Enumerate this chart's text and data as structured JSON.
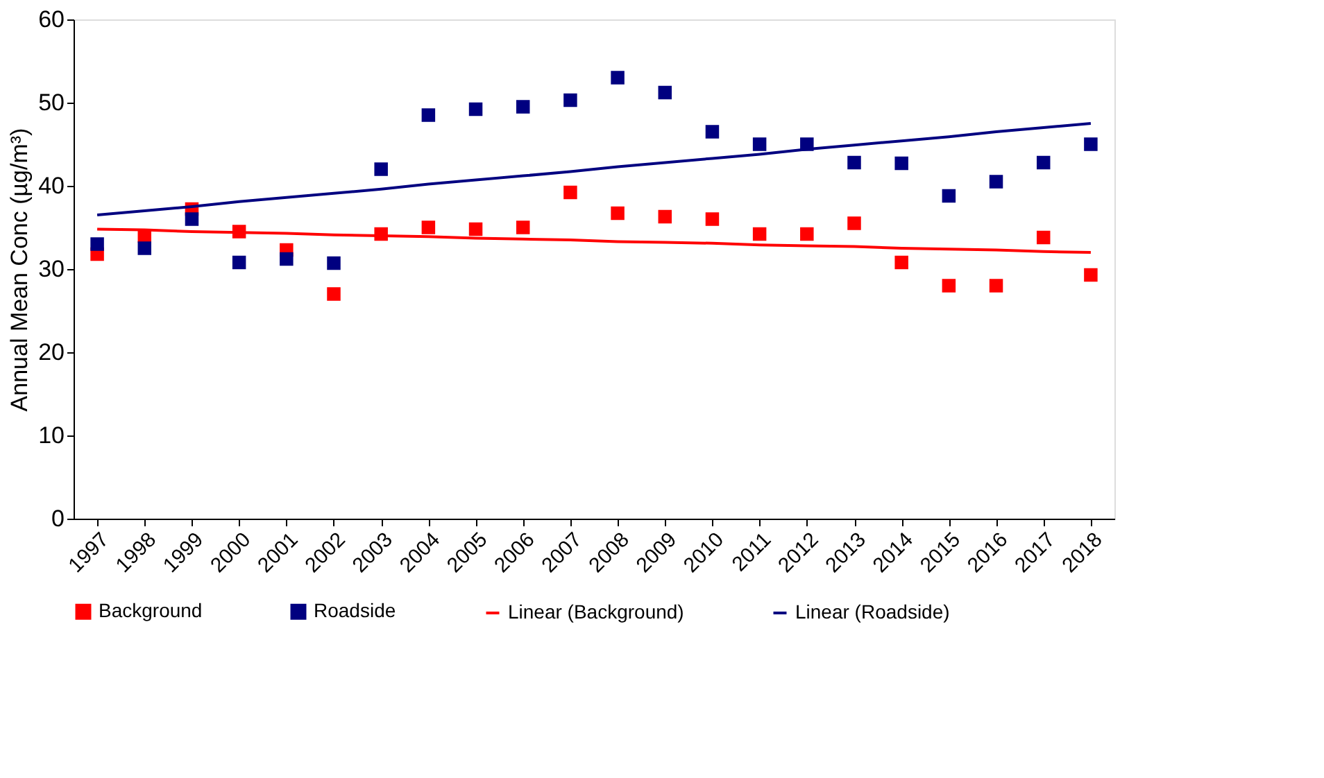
{
  "chart_data": {
    "type": "scatter",
    "ylabel": "Annual Mean Conc (µg/m³)",
    "categories": [
      "1997",
      "1998",
      "1999",
      "2000",
      "2001",
      "2002",
      "2003",
      "2004",
      "2005",
      "2006",
      "2007",
      "2008",
      "2009",
      "2010",
      "2011",
      "2012",
      "2013",
      "2014",
      "2015",
      "2016",
      "2017",
      "2018"
    ],
    "series": [
      {
        "name": "Background",
        "color": "#ff0000",
        "marker": "square",
        "values": [
          31.8,
          34.0,
          37.2,
          34.5,
          32.3,
          27.0,
          34.2,
          35.0,
          34.8,
          35.0,
          39.2,
          36.7,
          36.3,
          36.0,
          34.2,
          34.2,
          35.5,
          30.8,
          28.0,
          28.0,
          33.8,
          29.3
        ]
      },
      {
        "name": "Roadside",
        "color": "#000080",
        "marker": "square",
        "values": [
          33.0,
          32.5,
          36.0,
          30.8,
          31.2,
          30.7,
          42.0,
          48.5,
          49.2,
          49.5,
          50.3,
          53.0,
          51.2,
          46.5,
          45.0,
          45.0,
          42.8,
          42.7,
          38.8,
          40.5,
          42.8,
          45.0
        ]
      },
      {
        "name": "Linear (Background)",
        "color": "#ff0000",
        "type": "line",
        "line_style": "solid",
        "values": [
          34.8,
          34.7,
          34.5,
          34.4,
          34.3,
          34.1,
          34.0,
          33.9,
          33.7,
          33.6,
          33.5,
          33.3,
          33.2,
          33.1,
          32.9,
          32.8,
          32.7,
          32.5,
          32.4,
          32.3,
          32.1,
          32.0
        ]
      },
      {
        "name": "Linear (Roadside)",
        "color": "#000080",
        "type": "line",
        "line_style": "solid",
        "values": [
          36.5,
          37.0,
          37.5,
          38.1,
          38.6,
          39.1,
          39.6,
          40.2,
          40.7,
          41.2,
          41.7,
          42.3,
          42.8,
          43.3,
          43.8,
          44.4,
          44.9,
          45.4,
          45.9,
          46.5,
          47.0,
          47.5
        ]
      }
    ],
    "ylim": [
      0,
      60
    ],
    "yticks": [
      0,
      10,
      20,
      30,
      40,
      50,
      60
    ],
    "grid": false,
    "legend": "bottom"
  }
}
